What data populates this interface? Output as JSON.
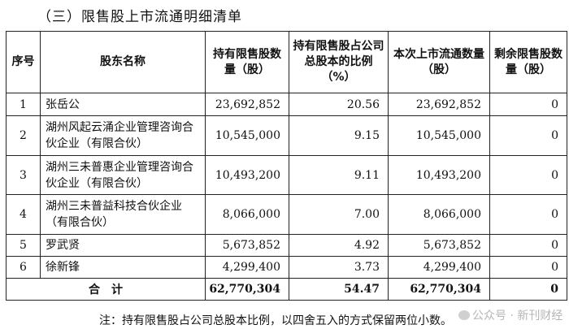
{
  "heading": "（三）限售股上市流通明细清单",
  "table": {
    "headers": {
      "seq": "序号",
      "name": "股东名称",
      "held": "持有限售股数量（股）",
      "ratio": "持有限售股占公司总股本的比例（%）",
      "listed": "本次上市流通数量（股）",
      "remaining": "剩余限售股数量（股）"
    },
    "rows": [
      {
        "seq": "1",
        "name": "张岳公",
        "held": "23,692,852",
        "ratio": "20.56",
        "listed": "23,692,852",
        "remaining": "0"
      },
      {
        "seq": "2",
        "name": "湖州风起云涌企业管理咨询合伙企业（有限合伙）",
        "held": "10,545,000",
        "ratio": "9.15",
        "listed": "10,545,000",
        "remaining": "0"
      },
      {
        "seq": "3",
        "name": "湖州三未普惠企业管理咨询合伙企业（有限合伙）",
        "held": "10,493,200",
        "ratio": "9.11",
        "listed": "10,493,200",
        "remaining": "0"
      },
      {
        "seq": "4",
        "name": "湖州三未普益科技合伙企业（有限合伙）",
        "held": "8,066,000",
        "ratio": "7.00",
        "listed": "8,066,000",
        "remaining": "0"
      },
      {
        "seq": "5",
        "name": "罗武贤",
        "held": "5,673,852",
        "ratio": "4.92",
        "listed": "5,673,852",
        "remaining": "0"
      },
      {
        "seq": "6",
        "name": "徐新锋",
        "held": "4,299,400",
        "ratio": "3.73",
        "listed": "4,299,400",
        "remaining": "0"
      }
    ],
    "total": {
      "label": "合　计",
      "held": "62,770,304",
      "ratio": "54.47",
      "listed": "62,770,304",
      "remaining": "0"
    }
  },
  "note": "注：持有限售股占公司总股本比例，以四舍五入的方式保留两位小数。",
  "watermark": "公众号 · 新刊财经"
}
